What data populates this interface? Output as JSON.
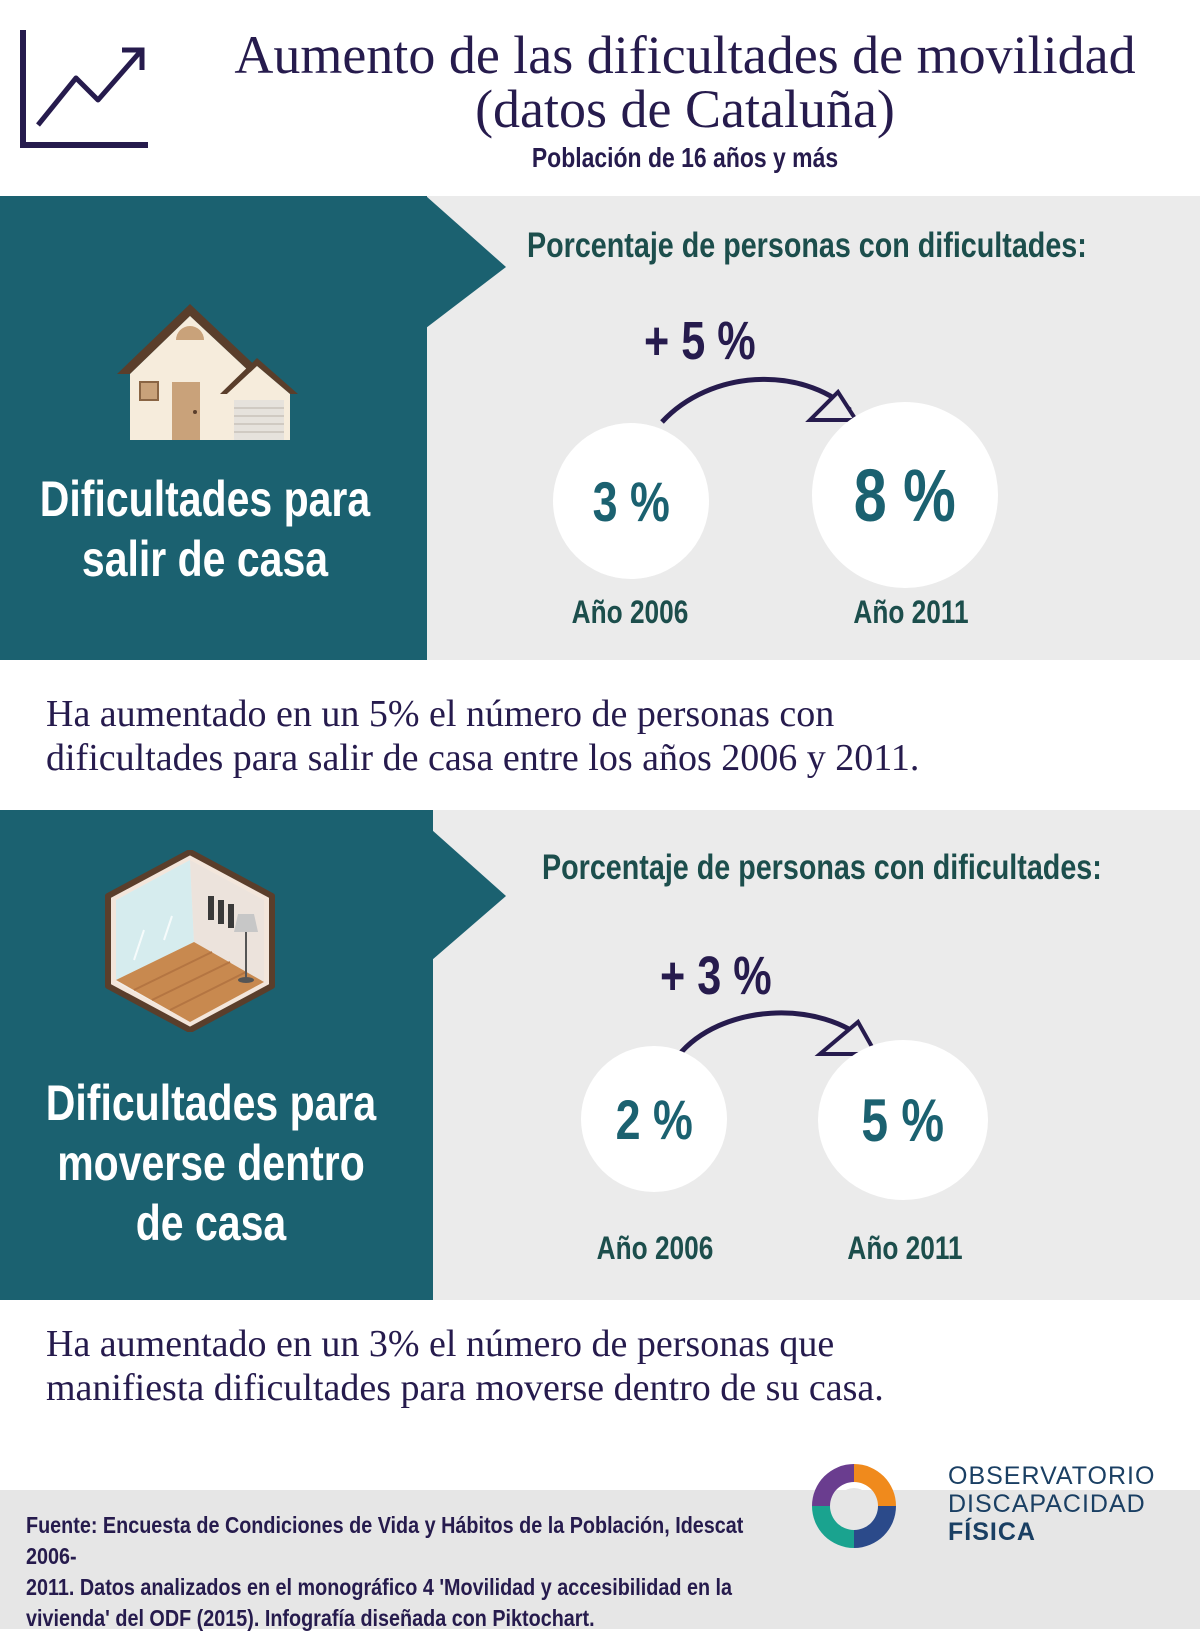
{
  "header": {
    "title_line1": "Aumento de las dificultades de movilidad",
    "title_line2": "(datos de Cataluña)",
    "subtitle": "Población de 16 años y más",
    "icon": "trend-up-chart-icon"
  },
  "sections": [
    {
      "heading_line1": "Dificultades para",
      "heading_line2": "salir de casa",
      "heading_line3": "",
      "icon": "house-icon",
      "pct_heading": "Porcentaje de personas con dificultades:",
      "delta": "+ 5 %",
      "value_2006": "3 %",
      "value_2011": "8 %",
      "year_2006": "Año 2006",
      "year_2011": "Año 2011",
      "summary_line1": "Ha aumentado en un 5% el número de personas con",
      "summary_line2": "dificultades para salir de casa entre los años 2006 y 2011."
    },
    {
      "heading_line1": "Dificultades para",
      "heading_line2": "moverse dentro",
      "heading_line3": "de casa",
      "icon": "room-interior-icon",
      "pct_heading": "Porcentaje de personas con dificultades:",
      "delta": "+ 3 %",
      "value_2006": "2 %",
      "value_2011": "5 %",
      "year_2006": "Año 2006",
      "year_2011": "Año 2011",
      "summary_line1": "Ha aumentado en un 3% el número de personas que",
      "summary_line2": "manifiesta dificultades para moverse dentro de su casa."
    }
  ],
  "footer": {
    "source_line1": "Fuente: Encuesta de Condiciones de Vida y Hábitos de la Población, Idescat 2006-",
    "source_line2": "2011. Datos analizados en el monográfico 4 'Movilidad y accesibilidad en la",
    "source_line3": "vivienda' del ODF (2015). Infografía diseñada con Piktochart.",
    "logo_line1": "OBSERVATORIO",
    "logo_line2": "DISCAPACIDAD",
    "logo_line3": "FÍSICA",
    "logo_icon": "odf-logo-icon"
  },
  "colors": {
    "teal": "#1b6170",
    "navy": "#261b4d",
    "grey": "#ebebeb",
    "dark_green": "#1c4e4c"
  }
}
